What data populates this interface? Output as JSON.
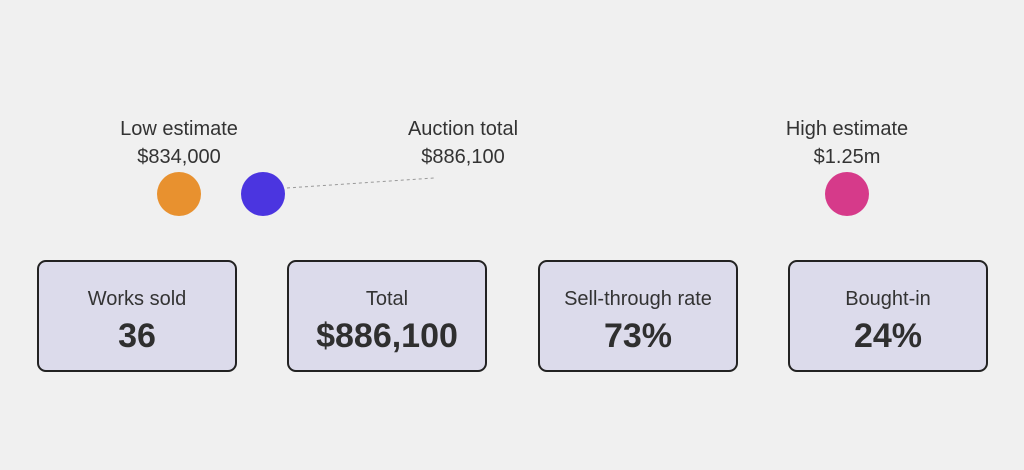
{
  "chart_data": {
    "type": "range",
    "low_estimate": 834000,
    "auction_total": 886100,
    "high_estimate": 1250000,
    "markers": [
      {
        "key": "low",
        "label": "Low estimate",
        "value_text": "$834,000",
        "color": "#e8912f"
      },
      {
        "key": "total",
        "label": "Auction total",
        "value_text": "$886,100",
        "color": "#4b35e0"
      },
      {
        "key": "high",
        "label": "High estimate",
        "value_text": "$1.25m",
        "color": "#d63a8a"
      }
    ]
  },
  "stats": [
    {
      "title": "Works sold",
      "value": "36"
    },
    {
      "title": "Total",
      "value": "$886,100"
    },
    {
      "title": "Sell-through rate",
      "value": "73%"
    },
    {
      "title": "Bought-in",
      "value": "24%"
    }
  ]
}
